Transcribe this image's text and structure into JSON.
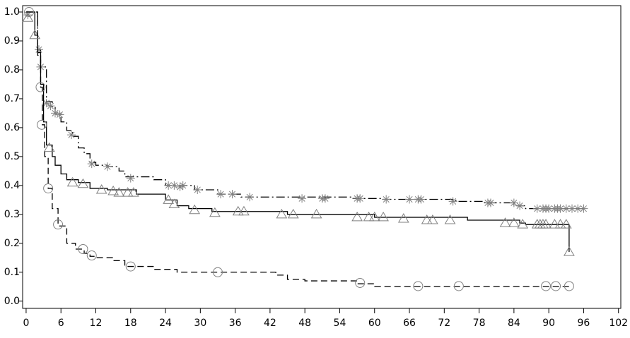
{
  "chart_data": {
    "type": "step",
    "xlim": [
      -0.6,
      102.4
    ],
    "ylim": [
      -0.025,
      1.022
    ],
    "xticks": [
      0,
      6,
      12,
      18,
      24,
      30,
      36,
      42,
      48,
      54,
      60,
      66,
      72,
      78,
      84,
      90,
      96,
      102
    ],
    "yticks": [
      {
        "value": 0,
        "label": "0.0"
      },
      0.1,
      0.2,
      0.3,
      0.4,
      0.5,
      0.6,
      0.7,
      0.8,
      0.9,
      {
        "value": 1,
        "label": "1.0"
      }
    ],
    "series": [
      {
        "color": "#000000",
        "marker_color": "#808080",
        "marker": "star",
        "linestyle": "dashdot",
        "x": [
          0,
          2,
          2.5,
          3.5,
          4.5,
          5,
          6,
          7,
          8,
          9,
          10,
          11,
          12,
          14,
          16,
          17,
          22,
          24,
          29,
          33,
          37,
          56,
          61,
          74,
          79,
          84,
          86,
          96
        ],
        "values": [
          1.0,
          0.87,
          0.81,
          0.69,
          0.67,
          0.65,
          0.62,
          0.59,
          0.57,
          0.53,
          0.51,
          0.48,
          0.47,
          0.465,
          0.45,
          0.43,
          0.42,
          0.4,
          0.385,
          0.37,
          0.36,
          0.355,
          0.352,
          0.345,
          0.34,
          0.33,
          0.32,
          0.32
        ],
        "censor_x": [
          0.3,
          2.2,
          2.5,
          3.5,
          4.2,
          5,
          5.8,
          7.8,
          11.3,
          14,
          18,
          24.5,
          25.5,
          26.5,
          27,
          29.5,
          33.5,
          35.5,
          38.5,
          47.5,
          51,
          51.5,
          57,
          57.5,
          62,
          66,
          67.5,
          68,
          73.5,
          79.5,
          80,
          84,
          85,
          88,
          89,
          89.5,
          90,
          91,
          91.5,
          92,
          93,
          94,
          95,
          96
        ],
        "censor_y": [
          0.99,
          0.87,
          0.81,
          0.685,
          0.675,
          0.65,
          0.645,
          0.575,
          0.475,
          0.465,
          0.425,
          0.4,
          0.4,
          0.395,
          0.4,
          0.385,
          0.37,
          0.37,
          0.36,
          0.355,
          0.355,
          0.355,
          0.355,
          0.355,
          0.352,
          0.352,
          0.352,
          0.352,
          0.345,
          0.34,
          0.34,
          0.34,
          0.33,
          0.32,
          0.32,
          0.32,
          0.32,
          0.32,
          0.32,
          0.32,
          0.32,
          0.32,
          0.32,
          0.32
        ]
      },
      {
        "color": "#000000",
        "marker_color": "#808080",
        "marker": "triangle",
        "linestyle": "solid",
        "x": [
          0,
          1.5,
          2,
          2.5,
          3,
          3.5,
          4.5,
          5,
          6,
          7,
          9,
          11,
          14,
          19,
          24,
          26,
          28,
          32,
          45,
          60,
          76,
          85,
          86,
          93.5
        ],
        "values": [
          1.0,
          0.92,
          0.86,
          0.75,
          0.62,
          0.54,
          0.5,
          0.47,
          0.44,
          0.42,
          0.41,
          0.39,
          0.385,
          0.37,
          0.35,
          0.33,
          0.32,
          0.31,
          0.3,
          0.29,
          0.28,
          0.27,
          0.265,
          0.17
        ],
        "censor_x": [
          0.3,
          1.5,
          4,
          8,
          9.8,
          13,
          15,
          16,
          17.5,
          18.5,
          24.5,
          25.5,
          29,
          32.5,
          36.5,
          37.5,
          44,
          46,
          50,
          57,
          59,
          60,
          61.5,
          65,
          69,
          70,
          73,
          82.5,
          84,
          85.5,
          88,
          88.5,
          89,
          89.5,
          91,
          92,
          93,
          93.5
        ],
        "censor_y": [
          0.98,
          0.92,
          0.53,
          0.41,
          0.405,
          0.385,
          0.38,
          0.375,
          0.375,
          0.375,
          0.35,
          0.335,
          0.315,
          0.305,
          0.31,
          0.31,
          0.3,
          0.3,
          0.3,
          0.29,
          0.29,
          0.29,
          0.29,
          0.285,
          0.28,
          0.28,
          0.28,
          0.27,
          0.27,
          0.265,
          0.265,
          0.265,
          0.265,
          0.265,
          0.265,
          0.265,
          0.265,
          0.17
        ]
      },
      {
        "color": "#000000",
        "marker_color": "#808080",
        "marker": "circle",
        "linestyle": "dashed",
        "x": [
          0,
          2,
          2.5,
          2.8,
          3.2,
          3.8,
          4.5,
          5.5,
          7,
          8.5,
          10,
          11,
          12,
          15,
          17,
          22,
          26,
          43,
          45,
          48,
          57,
          60,
          94
        ],
        "values": [
          1.0,
          0.85,
          0.74,
          0.61,
          0.5,
          0.39,
          0.32,
          0.26,
          0.2,
          0.18,
          0.165,
          0.155,
          0.15,
          0.14,
          0.12,
          0.11,
          0.1,
          0.09,
          0.075,
          0.07,
          0.06,
          0.05,
          0.05
        ],
        "censor_x": [
          0.5,
          2.5,
          2.7,
          3.8,
          5.5,
          9.8,
          11.3,
          18,
          33,
          57.5,
          67.5,
          74.5,
          89.5,
          91.2,
          93.5
        ],
        "censor_y": [
          1.0,
          0.74,
          0.61,
          0.39,
          0.265,
          0.18,
          0.158,
          0.12,
          0.1,
          0.063,
          0.052,
          0.052,
          0.052,
          0.052,
          0.052
        ]
      }
    ]
  }
}
